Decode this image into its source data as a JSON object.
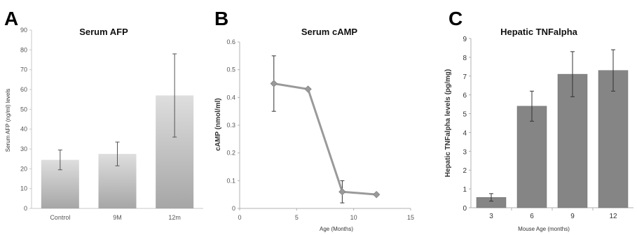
{
  "chart_data": [
    {
      "id": "A",
      "type": "bar",
      "panel_letter": "A",
      "title": "Serum AFP",
      "ylabel": "Serum AFP (ng/ml) levels",
      "xlabel": "",
      "categories": [
        "Control",
        "9M",
        "12m"
      ],
      "values": [
        24.5,
        27.5,
        57
      ],
      "error": [
        [
          19.5,
          29.5
        ],
        [
          21.5,
          33.5
        ],
        [
          36,
          78
        ]
      ],
      "ylim": [
        0,
        90
      ],
      "yticks": [
        0,
        10,
        20,
        30,
        40,
        50,
        60,
        70,
        80,
        90
      ],
      "grid": false,
      "colors": {
        "bar_top": "#dedede",
        "bar_bottom": "#a6a6a6",
        "error": "#555555",
        "axis": "#c8c8c8"
      }
    },
    {
      "id": "B",
      "type": "line",
      "panel_letter": "B",
      "title": "Serum cAMP",
      "ylabel": "cAMP (nmol/ml)",
      "xlabel": "Age (Months)",
      "x": [
        3,
        6,
        9,
        12
      ],
      "values": [
        0.45,
        0.43,
        0.06,
        0.05
      ],
      "error": [
        [
          0.35,
          0.55
        ],
        [
          0.43,
          0.43
        ],
        [
          0.02,
          0.1
        ],
        [
          0.05,
          0.05
        ]
      ],
      "xlim": [
        0,
        15
      ],
      "xticks": [
        0,
        5,
        10,
        15
      ],
      "ylim": [
        0,
        0.6
      ],
      "yticks": [
        "0",
        "0.1",
        "0.2",
        "0.3",
        "0.4",
        "0.5",
        "0.6"
      ],
      "grid": false,
      "colors": {
        "line": "#9a9a9a",
        "marker": "#9a9a9a",
        "error": "#333333",
        "axis": "#b0b0b0"
      }
    },
    {
      "id": "C",
      "type": "bar",
      "panel_letter": "C",
      "title": "Hepatic TNFalpha",
      "ylabel": "Hepatic TNFalpha levels (pg/mg)",
      "xlabel": "Mouse Age (months)",
      "categories": [
        "3",
        "6",
        "9",
        "12"
      ],
      "values": [
        0.55,
        5.4,
        7.1,
        7.3
      ],
      "error": [
        [
          0.35,
          0.75
        ],
        [
          4.6,
          6.2
        ],
        [
          5.9,
          8.3
        ],
        [
          6.2,
          8.4
        ]
      ],
      "ylim": [
        0,
        9
      ],
      "yticks": [
        0,
        1,
        2,
        3,
        4,
        5,
        6,
        7,
        8,
        9
      ],
      "grid": false,
      "colors": {
        "bar": "#858585",
        "bar_edge": "#6c6c6c",
        "error": "#333333",
        "axis": "#b0b0b0"
      }
    }
  ]
}
